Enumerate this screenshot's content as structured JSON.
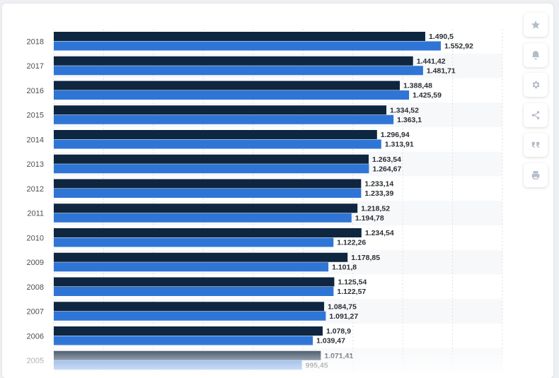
{
  "chart_data": {
    "type": "bar",
    "orientation": "horizontal",
    "categories": [
      "2018",
      "2017",
      "2016",
      "2015",
      "2014",
      "2013",
      "2012",
      "2011",
      "2010",
      "2009",
      "2008",
      "2007",
      "2006",
      "2005"
    ],
    "series": [
      {
        "color": "#0f2640",
        "values": [
          1490.5,
          1441.42,
          1388.48,
          1334.52,
          1296.94,
          1263.54,
          1233.14,
          1218.52,
          1234.54,
          1178.85,
          1125.54,
          1084.75,
          1078.9,
          1071.41
        ],
        "labels": [
          "1.490,5",
          "1.441,42",
          "1.388,48",
          "1.334,52",
          "1.296,94",
          "1.263,54",
          "1.233,14",
          "1.218,52",
          "1.234,54",
          "1.178,85",
          "1.125,54",
          "1.084,75",
          "1.078,9",
          "1.071,41"
        ]
      },
      {
        "color": "#2f75d6",
        "values": [
          1552.92,
          1481.71,
          1425.59,
          1363.1,
          1313.91,
          1264.67,
          1233.39,
          1194.78,
          1122.26,
          1101.8,
          1122.57,
          1091.27,
          1039.47,
          995.45
        ],
        "labels": [
          "1.552,92",
          "1.481,71",
          "1.425,59",
          "1.363,1",
          "1.313,91",
          "1.264,67",
          "1.233,39",
          "1.194,78",
          "1.122,26",
          "1.101,8",
          "1.122,57",
          "1.091,27",
          "1.039,47",
          "995,45"
        ]
      }
    ],
    "xlim": [
      0,
      1800
    ],
    "grid": true
  },
  "toolbar": [
    {
      "name": "favorite-button",
      "icon": "star-icon"
    },
    {
      "name": "notification-button",
      "icon": "bell-icon"
    },
    {
      "name": "settings-button",
      "icon": "gear-icon"
    },
    {
      "name": "share-button",
      "icon": "share-icon"
    },
    {
      "name": "cite-button",
      "icon": "quote-icon"
    },
    {
      "name": "print-button",
      "icon": "print-icon"
    }
  ]
}
